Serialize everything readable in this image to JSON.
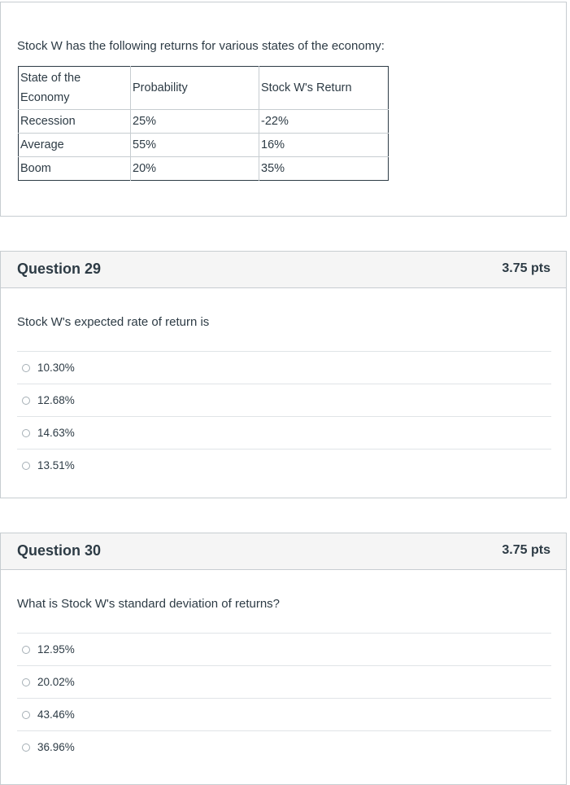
{
  "intro": {
    "text": "Stock W has the following returns for various states of the economy:",
    "table": {
      "headers": [
        "State of the Economy",
        "Probability",
        "Stock W's Return"
      ],
      "rows": [
        [
          "Recession",
          "25%",
          "-22%"
        ],
        [
          "Average",
          "55%",
          "16%"
        ],
        [
          "Boom",
          "20%",
          "35%"
        ]
      ]
    }
  },
  "questions": [
    {
      "title": "Question 29",
      "points": "3.75 pts",
      "text": "Stock W's expected rate of return is",
      "answers": [
        "10.30%",
        "12.68%",
        "14.63%",
        "13.51%"
      ]
    },
    {
      "title": "Question 30",
      "points": "3.75 pts",
      "text": "What is Stock W's standard deviation of returns?",
      "answers": [
        "12.95%",
        "20.02%",
        "43.46%",
        "36.96%"
      ]
    }
  ]
}
